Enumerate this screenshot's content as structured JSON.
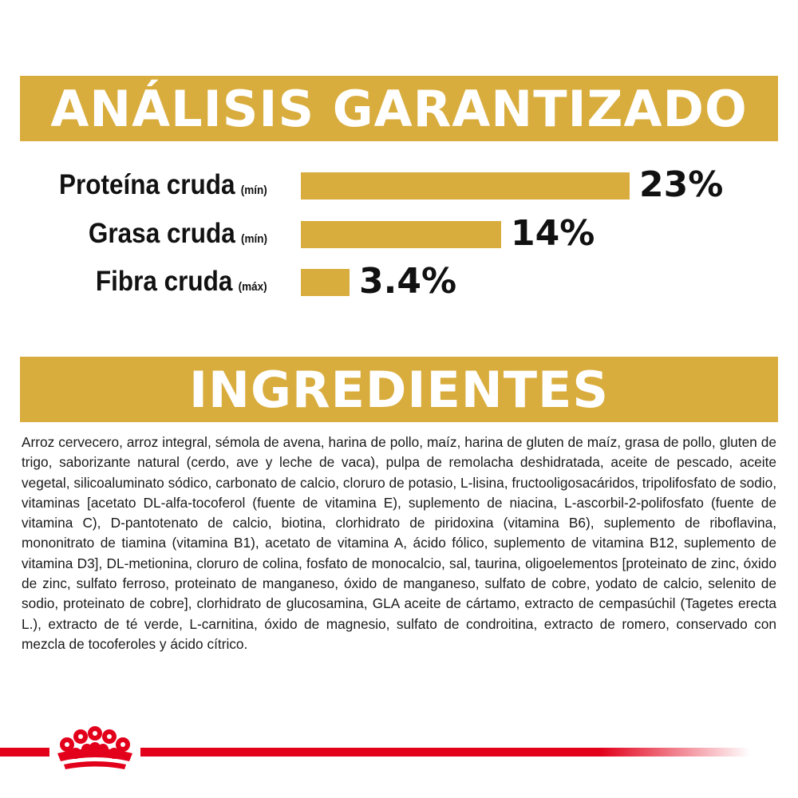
{
  "analysis": {
    "title": "ANÁLISIS GARANTIZADO",
    "accent_color": "#d9ad3d",
    "rows": [
      {
        "label": "Proteína cruda",
        "qualifier": "(mín)",
        "value": "23%",
        "amount": 23
      },
      {
        "label": "Grasa cruda",
        "qualifier": "(mín)",
        "value": "14%",
        "amount": 14
      },
      {
        "label": "Fibra cruda",
        "qualifier": "(máx)",
        "value": "3.4%",
        "amount": 3.4
      }
    ]
  },
  "ingredients": {
    "title": "INGREDIENTES",
    "text": "Arroz cervecero, arroz integral, sémola de avena, harina de pollo, maíz, harina de gluten de maíz, grasa de pollo, gluten de trigo, saborizante natural (cerdo, ave y leche de vaca), pulpa de remolacha deshidratada, aceite de pescado, aceite vegetal, silicoaluminato sódico, carbonato de calcio, cloruro de potasio, L-lisina, fructooligosacáridos, tripolifosfato de sodio, vitaminas [acetato DL-alfa-tocoferol (fuente de vitamina E), suplemento de niacina, L-ascorbil-2-polifosfato (fuente de vitamina C), D-pantotenato de calcio, biotina, clorhidrato de piridoxina (vitamina B6), suplemento de riboflavina, mononitrato de tiamina (vitamina B1), acetato de vitamina A, ácido fólico, suplemento de vitamina B12, suplemento de vitamina D3], DL-metionina, cloruro de colina, fosfato de monocalcio, sal, taurina, oligoelementos [proteinato de zinc, óxido de zinc, sulfato ferroso, proteinato de manganeso, óxido de manganeso, sulfato de cobre, yodato de calcio, selenito de sodio, proteinato de cobre], clorhidrato de glucosamina, GLA aceite de cártamo, extracto de cempasúchil (Tagetes erecta L.), extracto de té verde, L-carnitina, óxido de magnesio, sulfato de condroitina, extracto de romero, conservado con mezcla de tocoferoles y ácido cítrico."
  },
  "footer": {
    "brand_color": "#e2001a",
    "logo_icon": "royal-canin-crown-icon"
  }
}
